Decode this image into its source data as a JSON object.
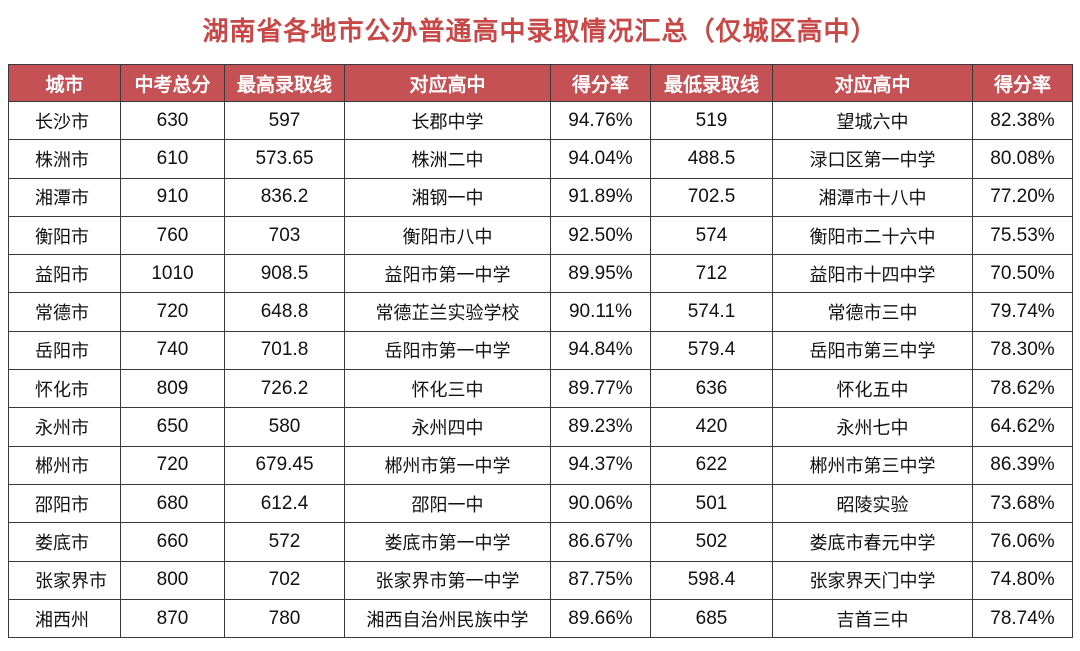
{
  "title": "湖南省各地市公办普通高中录取情况汇总（仅城区高中）",
  "colors": {
    "title": "#c84848",
    "header_bg": "#c65155",
    "header_text": "#ffffff",
    "border": "#3a3a3a"
  },
  "table": {
    "headers": [
      "城市",
      "中考总分",
      "最高录取线",
      "对应高中",
      "得分率",
      "最低录取线",
      "对应高中",
      "得分率"
    ],
    "rows": [
      [
        "长沙市",
        "630",
        "597",
        "长郡中学",
        "94.76%",
        "519",
        "望城六中",
        "82.38%"
      ],
      [
        "株洲市",
        "610",
        "573.65",
        "株洲二中",
        "94.04%",
        "488.5",
        "渌口区第一中学",
        "80.08%"
      ],
      [
        "湘潭市",
        "910",
        "836.2",
        "湘钢一中",
        "91.89%",
        "702.5",
        "湘潭市十八中",
        "77.20%"
      ],
      [
        "衡阳市",
        "760",
        "703",
        "衡阳市八中",
        "92.50%",
        "574",
        "衡阳市二十六中",
        "75.53%"
      ],
      [
        "益阳市",
        "1010",
        "908.5",
        "益阳市第一中学",
        "89.95%",
        "712",
        "益阳市十四中学",
        "70.50%"
      ],
      [
        "常德市",
        "720",
        "648.8",
        "常德芷兰实验学校",
        "90.11%",
        "574.1",
        "常德市三中",
        "79.74%"
      ],
      [
        "岳阳市",
        "740",
        "701.8",
        "岳阳市第一中学",
        "94.84%",
        "579.4",
        "岳阳市第三中学",
        "78.30%"
      ],
      [
        "怀化市",
        "809",
        "726.2",
        "怀化三中",
        "89.77%",
        "636",
        "怀化五中",
        "78.62%"
      ],
      [
        "永州市",
        "650",
        "580",
        "永州四中",
        "89.23%",
        "420",
        "永州七中",
        "64.62%"
      ],
      [
        "郴州市",
        "720",
        "679.45",
        "郴州市第一中学",
        "94.37%",
        "622",
        "郴州市第三中学",
        "86.39%"
      ],
      [
        "邵阳市",
        "680",
        "612.4",
        "邵阳一中",
        "90.06%",
        "501",
        "昭陵实验",
        "73.68%"
      ],
      [
        "娄底市",
        "660",
        "572",
        "娄底市第一中学",
        "86.67%",
        "502",
        "娄底市春元中学",
        "76.06%"
      ],
      [
        "张家界市",
        "800",
        "702",
        "张家界市第一中学",
        "87.75%",
        "598.4",
        "张家界天门中学",
        "74.80%"
      ],
      [
        "湘西州",
        "870",
        "780",
        "湘西自治州民族中学",
        "89.66%",
        "685",
        "吉首三中",
        "78.74%"
      ]
    ]
  }
}
